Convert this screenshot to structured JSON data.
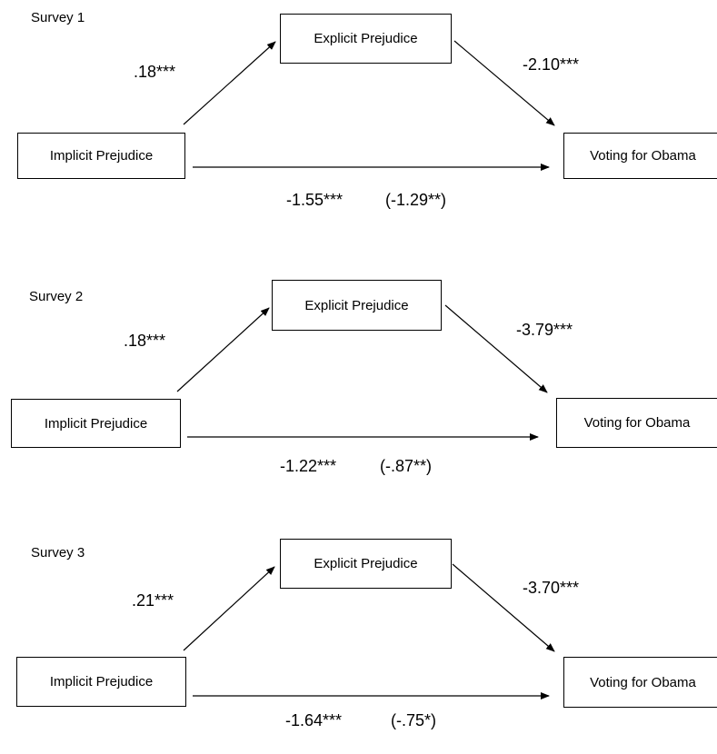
{
  "panels": [
    {
      "label": "Survey 1",
      "nodes": {
        "implicit": "Implicit Prejudice",
        "explicit": "Explicit Prejudice",
        "outcome": "Voting for Obama"
      },
      "coefficients": {
        "implicit_to_explicit": ".18***",
        "explicit_to_outcome": "-2.10***",
        "direct_total": "-1.55***",
        "direct_controlled": "(-1.29**)"
      }
    },
    {
      "label": "Survey 2",
      "nodes": {
        "implicit": "Implicit Prejudice",
        "explicit": "Explicit Prejudice",
        "outcome": "Voting for Obama"
      },
      "coefficients": {
        "implicit_to_explicit": ".18***",
        "explicit_to_outcome": "-3.79***",
        "direct_total": "-1.22***",
        "direct_controlled": "(-.87**)"
      }
    },
    {
      "label": "Survey 3",
      "nodes": {
        "implicit": "Implicit Prejudice",
        "explicit": "Explicit Prejudice",
        "outcome": "Voting for Obama"
      },
      "coefficients": {
        "implicit_to_explicit": ".21***",
        "explicit_to_outcome": "-3.70***",
        "direct_total": "-1.64***",
        "direct_controlled": "(-.75*)"
      }
    }
  ]
}
